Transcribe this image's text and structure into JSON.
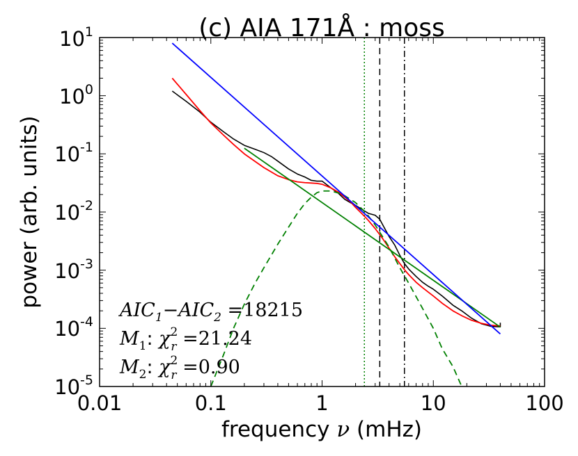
{
  "chart_data": {
    "type": "line",
    "title": "(c) AIA 171Å : moss",
    "xlabel": {
      "prefix": "frequency ",
      "symbol": "ν",
      "suffix": " (mHz)"
    },
    "ylabel": "power (arb. units)",
    "xscale": "log",
    "yscale": "log",
    "xlim": [
      0.01,
      100
    ],
    "ylim": [
      1e-05,
      10
    ],
    "x_tick_labels": [
      "0.01",
      "0.1",
      "1",
      "10",
      "100"
    ],
    "y_tick_labels": [
      {
        "base": "10",
        "exp": "-5"
      },
      {
        "base": "10",
        "exp": "-4"
      },
      {
        "base": "10",
        "exp": "-3"
      },
      {
        "base": "10",
        "exp": "-2"
      },
      {
        "base": "10",
        "exp": "-1"
      },
      {
        "base": "10",
        "exp": "0"
      },
      {
        "base": "10",
        "exp": "1"
      }
    ],
    "vertical_lines": [
      {
        "name": "green-dotted",
        "x": 2.4,
        "style": "dotted",
        "color": "#008000"
      },
      {
        "name": "black-dashed",
        "x": 3.3,
        "style": "dashed",
        "color": "#000000"
      },
      {
        "name": "black-dashdot",
        "x": 5.5,
        "style": "dashdot",
        "color": "#000000"
      }
    ],
    "series": [
      {
        "name": "data",
        "color": "#000000",
        "style": "solid",
        "x": [
          0.045,
          0.06,
          0.08,
          0.1,
          0.13,
          0.16,
          0.2,
          0.25,
          0.3,
          0.35,
          0.4,
          0.5,
          0.6,
          0.7,
          0.8,
          0.9,
          1.0,
          1.2,
          1.4,
          1.6,
          1.8,
          2.0,
          2.3,
          2.6,
          3.0,
          3.3,
          3.6,
          4.0,
          4.5,
          5.0,
          5.5,
          6.0,
          7.0,
          8.0,
          9.0,
          10,
          12,
          15,
          18,
          22,
          27,
          33,
          40,
          40
        ],
        "y": [
          1.2,
          0.8,
          0.52,
          0.35,
          0.24,
          0.18,
          0.14,
          0.12,
          0.105,
          0.09,
          0.075,
          0.055,
          0.045,
          0.04,
          0.035,
          0.034,
          0.034,
          0.026,
          0.021,
          0.0165,
          0.0145,
          0.013,
          0.011,
          0.0095,
          0.0088,
          0.0075,
          0.0055,
          0.0038,
          0.0027,
          0.0018,
          0.0013,
          0.00105,
          0.00078,
          0.00062,
          0.00053,
          0.00047,
          0.00036,
          0.00025,
          0.0002,
          0.00015,
          0.00012,
          0.000108,
          0.000106,
          0.000125
        ]
      },
      {
        "name": "model-fit-total",
        "color": "#ff0000",
        "style": "solid",
        "x": [
          0.045,
          0.06,
          0.08,
          0.1,
          0.13,
          0.16,
          0.2,
          0.25,
          0.3,
          0.4,
          0.5,
          0.6,
          0.7,
          0.8,
          0.9,
          1.0,
          1.2,
          1.4,
          1.6,
          1.8,
          2.0,
          2.3,
          2.6,
          3.0,
          3.5,
          4.0,
          4.5,
          5.0,
          5.5,
          6.0,
          7.0,
          8.0,
          9.0,
          10,
          12,
          15,
          18,
          22,
          27,
          33,
          40
        ],
        "y": [
          2.0,
          1.05,
          0.55,
          0.34,
          0.21,
          0.145,
          0.1,
          0.074,
          0.058,
          0.042,
          0.036,
          0.033,
          0.032,
          0.0315,
          0.031,
          0.03,
          0.026,
          0.022,
          0.018,
          0.015,
          0.012,
          0.0092,
          0.0072,
          0.0052,
          0.0035,
          0.0024,
          0.0017,
          0.0013,
          0.00102,
          0.00084,
          0.00062,
          0.0005,
          0.00042,
          0.00036,
          0.00027,
          0.0002,
          0.000165,
          0.000138,
          0.000122,
          0.000113,
          0.00011
        ]
      },
      {
        "name": "power-law-component",
        "color": "#008000",
        "style": "solid",
        "x": [
          0.2,
          40
        ],
        "y": [
          0.125,
          0.000105
        ]
      },
      {
        "name": "gaussian-bump-component",
        "color": "#008000",
        "style": "dashed",
        "x": [
          0.1,
          0.13,
          0.16,
          0.2,
          0.25,
          0.3,
          0.4,
          0.5,
          0.6,
          0.7,
          0.8,
          0.9,
          1.0,
          1.2,
          1.5,
          2.0,
          2.5,
          3.0,
          4.0,
          5.0,
          6.0,
          8.0,
          10,
          12,
          15,
          18
        ],
        "y": [
          1e-05,
          3.5e-05,
          0.0001,
          0.00026,
          0.0006,
          0.0011,
          0.0028,
          0.0055,
          0.0095,
          0.014,
          0.018,
          0.0215,
          0.023,
          0.023,
          0.0205,
          0.0145,
          0.0095,
          0.006,
          0.0025,
          0.0011,
          0.0006,
          0.00022,
          0.0001,
          4.5e-05,
          2.2e-05,
          1e-05
        ]
      },
      {
        "name": "single-power-law-model",
        "color": "#0000ff",
        "style": "solid",
        "x": [
          0.045,
          40
        ],
        "y": [
          8.0,
          8e-05
        ]
      }
    ],
    "annotations": [
      {
        "name": "aic-annotation",
        "lhs": "AIC",
        "sub1": "1",
        "minus": "−",
        "sub2": "2",
        "rhs": " =18215"
      },
      {
        "name": "m1-annotation",
        "model": "M",
        "model_sub": "1",
        "colon": ": ",
        "chi": "χ",
        "chi_sup": "2",
        "chi_sub": "r",
        "value": " =21.24"
      },
      {
        "name": "m2-annotation",
        "model": "M",
        "model_sub": "2",
        "colon": ": ",
        "chi": "χ",
        "chi_sup": "2",
        "chi_sub": "r",
        "value": " =0.90"
      }
    ]
  }
}
